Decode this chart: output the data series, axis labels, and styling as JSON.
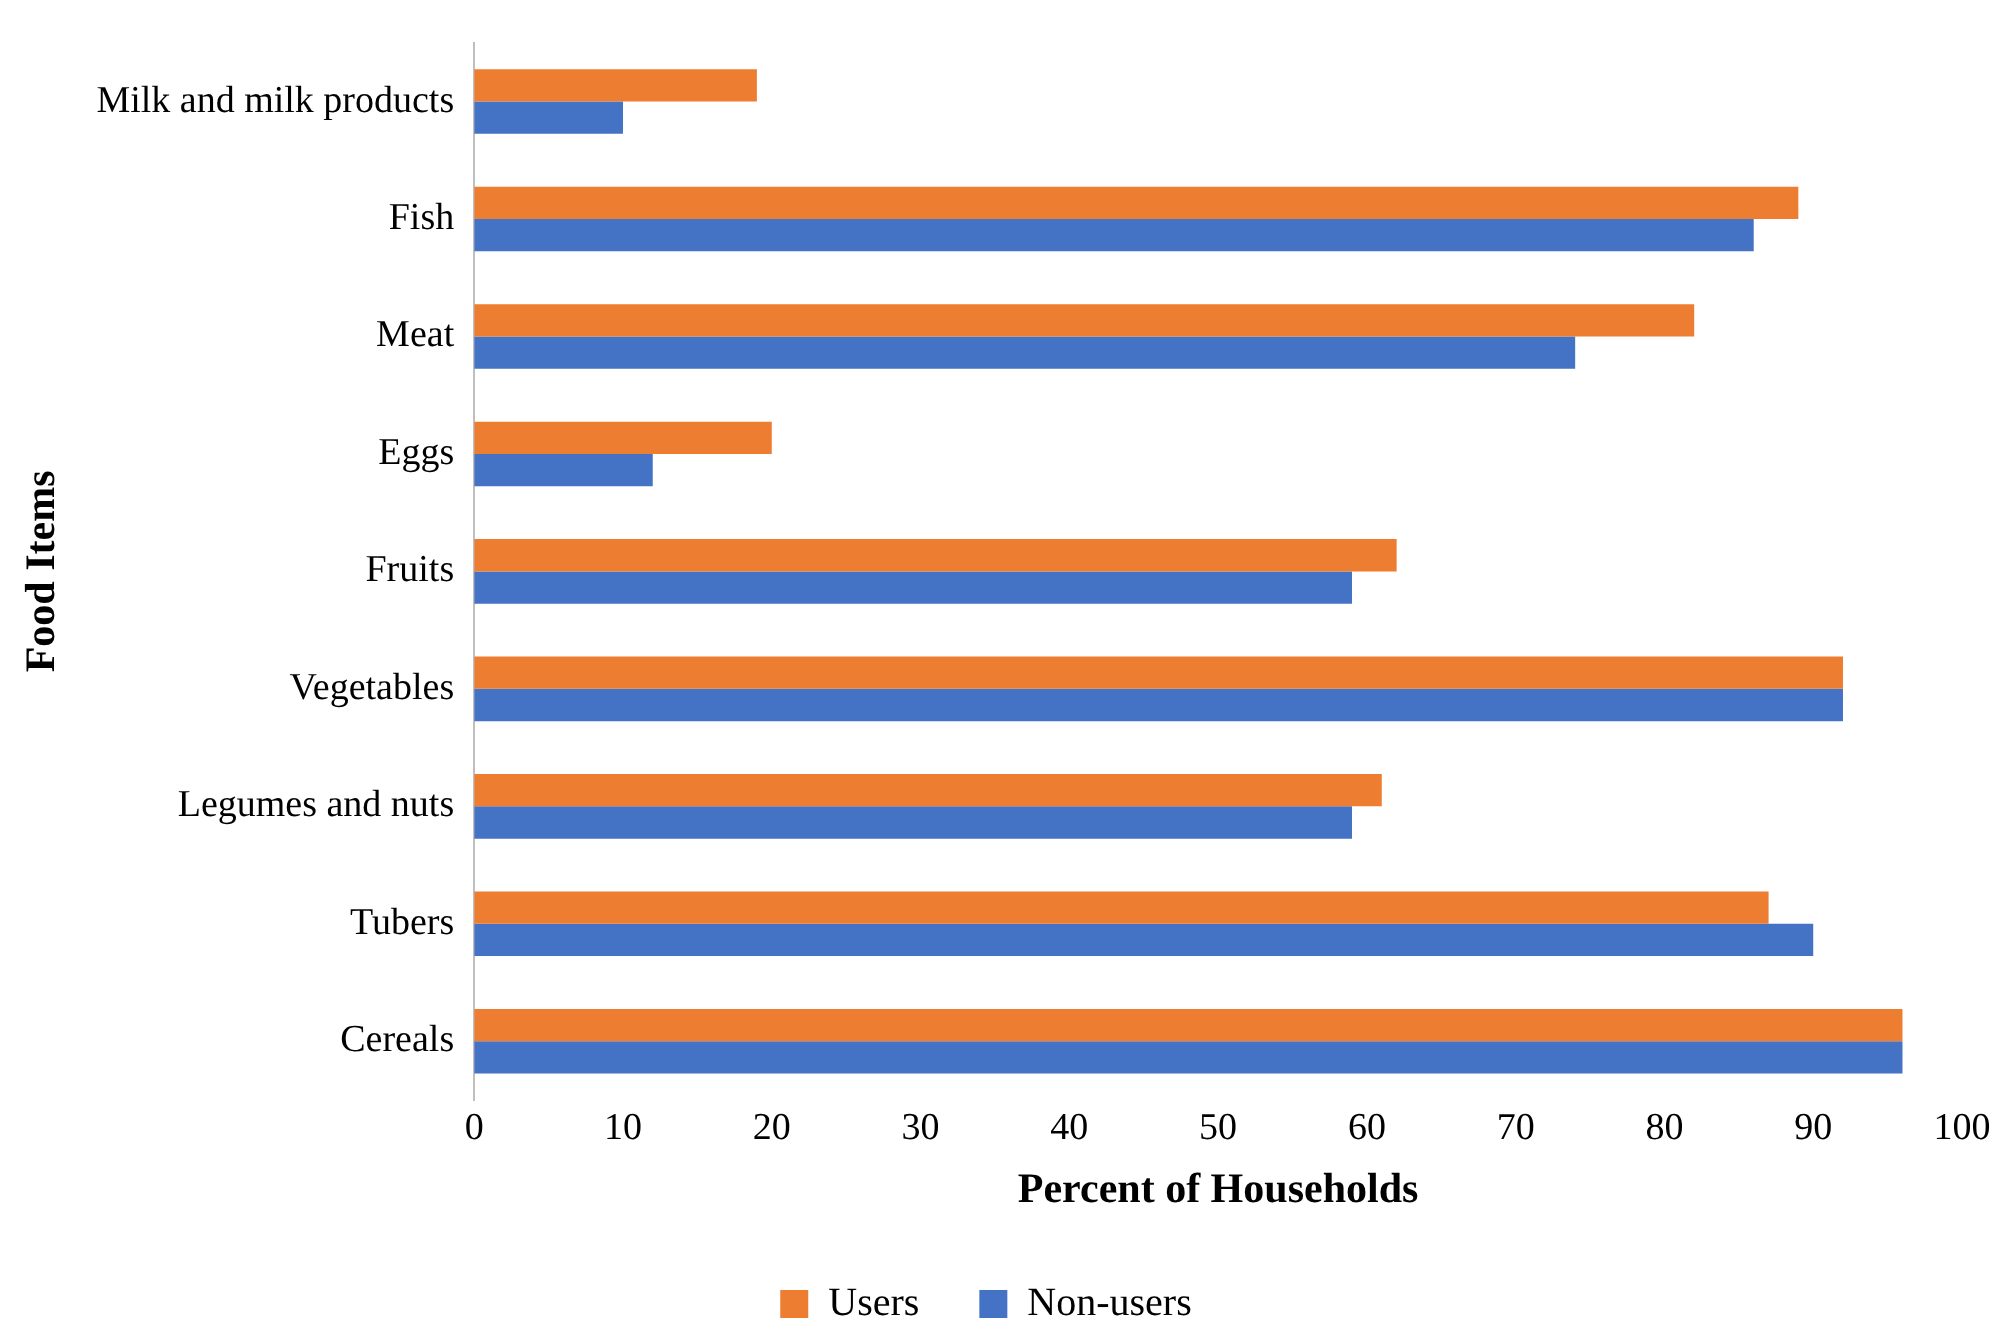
{
  "chart_data": {
    "type": "bar",
    "orientation": "horizontal",
    "xlabel": "Percent of Households",
    "ylabel": "Food Items",
    "categories": [
      "Milk and milk products",
      "Fish",
      "Meat",
      "Eggs",
      "Fruits",
      "Vegetables",
      "Legumes and nuts",
      "Tubers",
      "Cereals"
    ],
    "series": [
      {
        "name": "Users",
        "color": "#ed7d31",
        "values": [
          19,
          89,
          82,
          20,
          62,
          92,
          61,
          87,
          96
        ]
      },
      {
        "name": "Non-users",
        "color": "#4472c4",
        "values": [
          10,
          86,
          74,
          12,
          59,
          92,
          59,
          90,
          96
        ]
      }
    ],
    "xlim": [
      0,
      100
    ],
    "xticks": [
      0,
      10,
      20,
      30,
      40,
      50,
      60,
      70,
      80,
      90,
      100
    ],
    "grid": false,
    "legend": "bottom"
  }
}
